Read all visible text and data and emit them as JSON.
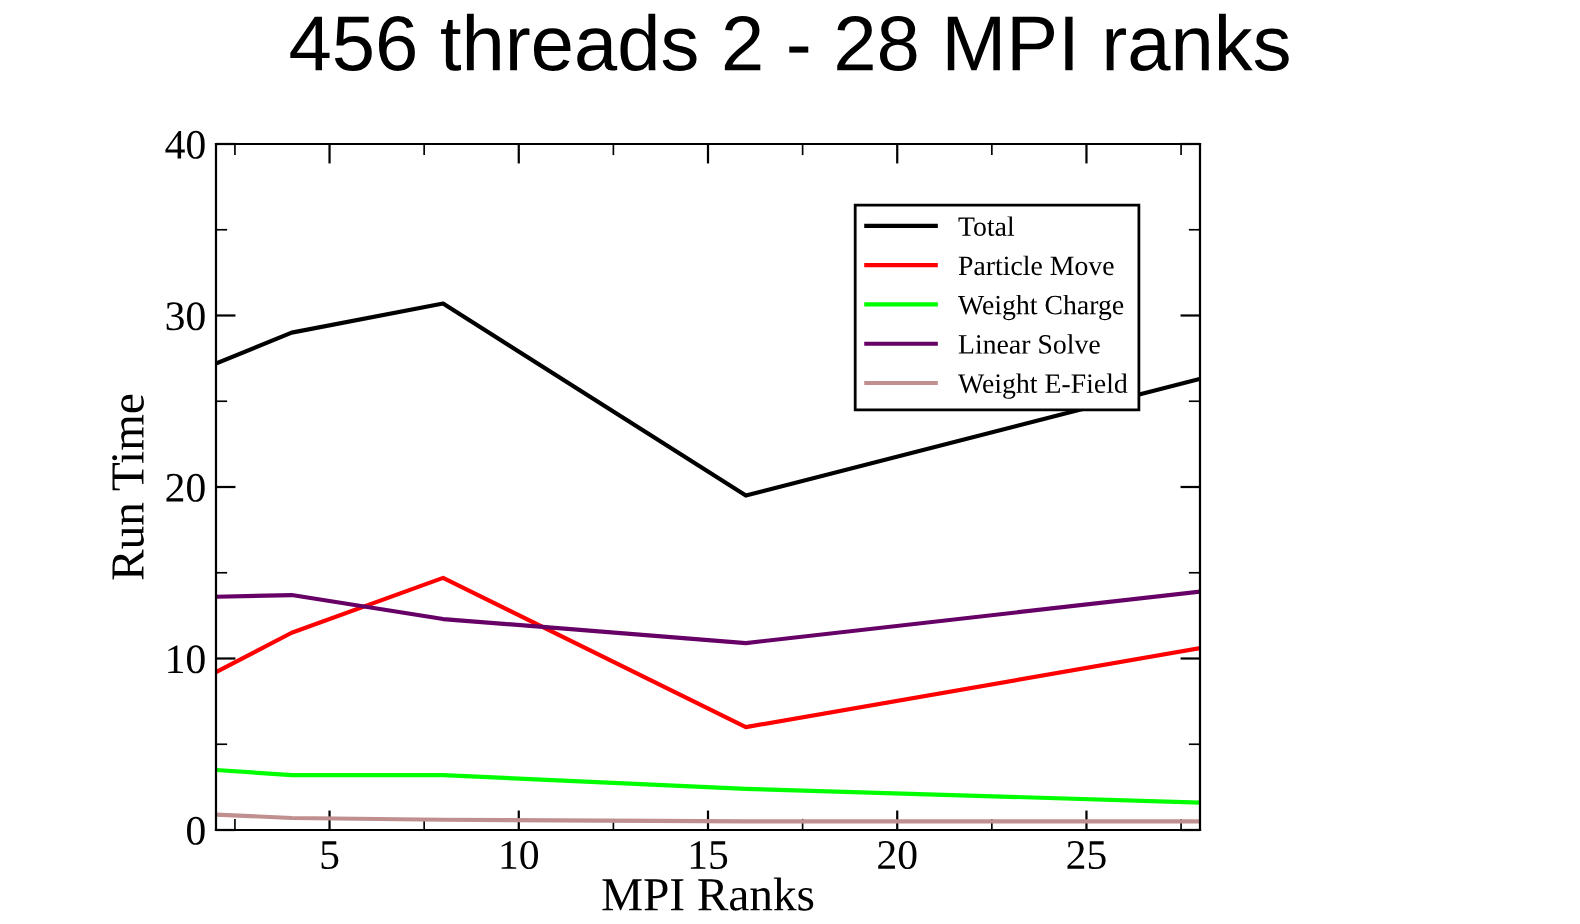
{
  "chart_data": {
    "type": "line",
    "title": "456 threads 2 - 28 MPI ranks",
    "xlabel": "MPI Ranks",
    "ylabel": "Run Time",
    "x": [
      2,
      4,
      8,
      16,
      28
    ],
    "series": [
      {
        "name": "Total",
        "color": "#000000",
        "values": [
          27.2,
          29.0,
          30.7,
          19.5,
          26.3
        ]
      },
      {
        "name": "Particle Move",
        "color": "#ff0000",
        "values": [
          9.2,
          11.5,
          14.7,
          6.0,
          10.6
        ]
      },
      {
        "name": "Weight Charge",
        "color": "#00ff00",
        "values": [
          3.5,
          3.2,
          3.2,
          2.4,
          1.6
        ]
      },
      {
        "name": "Linear Solve",
        "color": "#660066",
        "values": [
          13.6,
          13.7,
          12.3,
          10.9,
          13.9
        ]
      },
      {
        "name": "Weight E-Field",
        "color": "#c09090",
        "values": [
          0.9,
          0.7,
          0.6,
          0.5,
          0.5
        ]
      }
    ],
    "xlim": [
      2,
      28
    ],
    "xticks": [
      5,
      10,
      15,
      20,
      25
    ],
    "ylim": [
      0,
      40
    ],
    "yticks": [
      0,
      10,
      20,
      30,
      40
    ],
    "grid": false,
    "legend": "top right",
    "marker": "none",
    "line_style": "solid"
  }
}
